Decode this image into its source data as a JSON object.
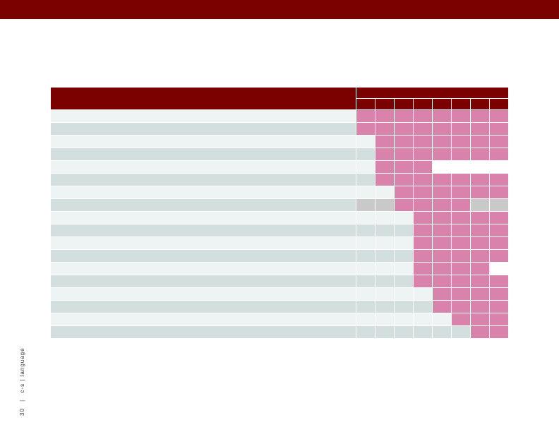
{
  "colors": {
    "banner": "#7b0000",
    "header": "#7b0000",
    "filled": "#d982ab",
    "gray": "#c9c9c9"
  },
  "matrix": {
    "column_count": 8,
    "rows": [
      {
        "cells": [
          "P",
          "P",
          "P",
          "P",
          "P",
          "P",
          "P",
          "P"
        ]
      },
      {
        "cells": [
          "P",
          "P",
          "P",
          "P",
          "P",
          "P",
          "P",
          "P"
        ]
      },
      {
        "cells": [
          "E",
          "P",
          "P",
          "P",
          "P",
          "P",
          "P",
          "P"
        ]
      },
      {
        "cells": [
          "E",
          "P",
          "P",
          "P",
          "P",
          "P",
          "P",
          "P"
        ]
      },
      {
        "cells": [
          "E",
          "P",
          "P",
          "P",
          "W",
          "W",
          "W",
          "W"
        ]
      },
      {
        "cells": [
          "E",
          "P",
          "P",
          "P",
          "P",
          "P",
          "P",
          "P"
        ]
      },
      {
        "cells": [
          "E",
          "E",
          "P",
          "P",
          "P",
          "P",
          "P",
          "P"
        ]
      },
      {
        "cells": [
          "G",
          "G",
          "P",
          "P",
          "P",
          "P",
          "G",
          "G"
        ]
      },
      {
        "cells": [
          "E",
          "E",
          "E",
          "P",
          "P",
          "P",
          "P",
          "P"
        ]
      },
      {
        "cells": [
          "E",
          "E",
          "E",
          "P",
          "P",
          "P",
          "P",
          "P"
        ]
      },
      {
        "cells": [
          "E",
          "E",
          "E",
          "P",
          "P",
          "P",
          "P",
          "P"
        ]
      },
      {
        "cells": [
          "E",
          "E",
          "E",
          "P",
          "P",
          "P",
          "P",
          "P"
        ]
      },
      {
        "cells": [
          "E",
          "E",
          "E",
          "P",
          "P",
          "P",
          "P",
          "W"
        ]
      },
      {
        "cells": [
          "E",
          "E",
          "E",
          "P",
          "P",
          "P",
          "P",
          "P"
        ]
      },
      {
        "cells": [
          "E",
          "E",
          "E",
          "E",
          "P",
          "P",
          "P",
          "P"
        ]
      },
      {
        "cells": [
          "E",
          "E",
          "E",
          "E",
          "P",
          "P",
          "P",
          "P"
        ]
      },
      {
        "cells": [
          "E",
          "E",
          "E",
          "E",
          "E",
          "P",
          "P",
          "P"
        ]
      },
      {
        "cells": [
          "E",
          "E",
          "E",
          "E",
          "E",
          "E",
          "P",
          "P"
        ]
      }
    ]
  },
  "footer": {
    "page_number": "30",
    "separator": "|",
    "title": "c-s | language"
  }
}
